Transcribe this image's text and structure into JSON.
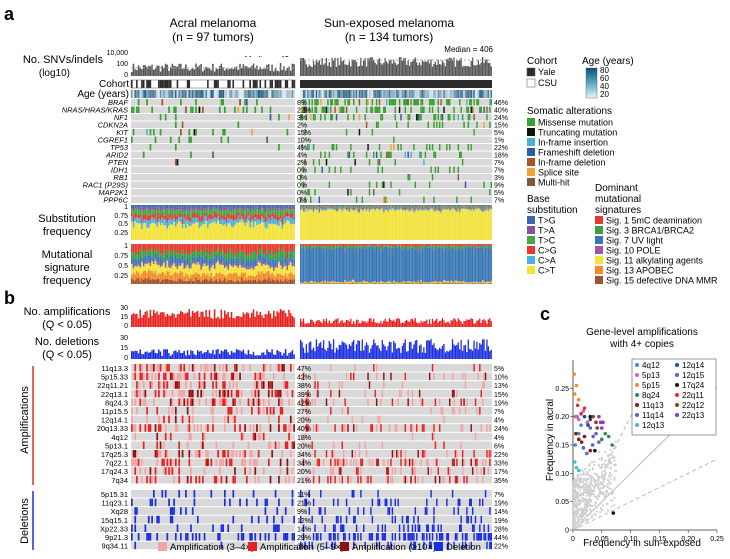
{
  "panel_labels": {
    "a": "a",
    "b": "b",
    "c": "c"
  },
  "header": {
    "acral_title": "Acral melanoma",
    "acral_n": "(n = 97 tumors)",
    "sun_title": "Sun-exposed melanoma",
    "sun_n": "(n = 134 tumors)"
  },
  "rows": {
    "snvs": "No. SNVs/indels",
    "snvs_unit": "(log10)",
    "cohort": "Cohort",
    "age": "Age (years)",
    "subst_1": "Substitution",
    "subst_2": "frequency",
    "mut_1": "Mutational",
    "mut_2": "signature",
    "mut_3": "frequency",
    "amp_1": "No. amplifications",
    "amp_2": "(Q < 0.05)",
    "del_1": "No. deletions",
    "del_2": "(Q < 0.05)",
    "amplifications_group": "Amplifications",
    "deletions_group": "Deletions"
  },
  "snv_axis": [
    "10,000",
    "100",
    "0"
  ],
  "median_acral": "Median = 42",
  "median_sun": "Median = 406",
  "freq_axis": [
    "1",
    "0.75",
    "0.5",
    "0.25"
  ],
  "count_axis": [
    "30",
    "15",
    "0"
  ],
  "genes": [
    {
      "name": "BRAF",
      "acral": "8%",
      "sun": "46%"
    },
    {
      "name": "NRAS/HRAS/KRAS",
      "acral": "22%",
      "sun": "40%"
    },
    {
      "name": "NF1",
      "acral": "3%",
      "sun": "24%"
    },
    {
      "name": "CDKN2A",
      "acral": "2%",
      "sun": "15%"
    },
    {
      "name": "KIT",
      "acral": "15%",
      "sun": "5%"
    },
    {
      "name": "CGREF1",
      "acral": "10%",
      "sun": "1%"
    },
    {
      "name": "TP53",
      "acral": "4%",
      "sun": "22%"
    },
    {
      "name": "ARID2",
      "acral": "4%",
      "sun": "18%"
    },
    {
      "name": "PTEN",
      "acral": "2%",
      "sun": "7%"
    },
    {
      "name": "IDH1",
      "acral": "0%",
      "sun": "7%"
    },
    {
      "name": "RB1",
      "acral": "0%",
      "sun": "3%"
    },
    {
      "name": "RAC1 (P29S)",
      "acral": "0%",
      "sun": "9%"
    },
    {
      "name": "MAP2K1",
      "acral": "0%",
      "sun": "5%"
    },
    {
      "name": "PPP6C",
      "acral": "0%",
      "sun": "7%"
    }
  ],
  "amps": [
    {
      "name": "11q13.3",
      "acral": "47%",
      "sun": "5%"
    },
    {
      "name": "5p15.33",
      "acral": "42%",
      "sun": "10%"
    },
    {
      "name": "22q11.21",
      "acral": "38%",
      "sun": "13%"
    },
    {
      "name": "22q13.1",
      "acral": "39%",
      "sun": "15%"
    },
    {
      "name": "8q24.3",
      "acral": "42%",
      "sun": "19%"
    },
    {
      "name": "11p15.5",
      "acral": "27%",
      "sun": "7%"
    },
    {
      "name": "12q14.1",
      "acral": "20%",
      "sun": "4%"
    },
    {
      "name": "20q13.33",
      "acral": "40%",
      "sun": "24%"
    },
    {
      "name": "4q12",
      "acral": "18%",
      "sun": "4%"
    },
    {
      "name": "5p13.1",
      "acral": "20%",
      "sun": "6%"
    },
    {
      "name": "17q25.3",
      "acral": "34%",
      "sun": "22%"
    },
    {
      "name": "7q22.1",
      "acral": "34%",
      "sun": "33%"
    },
    {
      "name": "17q24.3",
      "acral": "20%",
      "sun": "17%"
    },
    {
      "name": "7q34",
      "acral": "21%",
      "sun": "35%"
    }
  ],
  "dels": [
    {
      "name": "5p15.31",
      "acral": "11%",
      "sun": "7%"
    },
    {
      "name": "11q23.1",
      "acral": "21%",
      "sun": "19%"
    },
    {
      "name": "Xq28",
      "acral": "9%",
      "sun": "14%"
    },
    {
      "name": "15q15.1",
      "acral": "12%",
      "sun": "19%"
    },
    {
      "name": "Xp22.33",
      "acral": "14%",
      "sun": "28%"
    },
    {
      "name": "9p21.3",
      "acral": "29%",
      "sun": "44%"
    },
    {
      "name": "9q34.11",
      "acral": "3%",
      "sun": "22%"
    }
  ],
  "legend": {
    "cohort_title": "Cohort",
    "cohort_items": [
      {
        "label": "Yale",
        "color": "#2b2b2b"
      },
      {
        "label": "CSU",
        "color": "#ffffff"
      }
    ],
    "age_title": "Age (years)",
    "age_ticks": [
      "80",
      "60",
      "40",
      "20"
    ],
    "alterations_title": "Somatic alterations",
    "alterations": [
      {
        "label": "Missense mutation",
        "color": "#3aa02f"
      },
      {
        "label": "Truncating mutation",
        "color": "#111111"
      },
      {
        "label": "In-frame insertion",
        "color": "#4cb1d8"
      },
      {
        "label": "Frameshift deletion",
        "color": "#2a5ba6"
      },
      {
        "label": "In-frame deletion",
        "color": "#a8552a"
      },
      {
        "label": "Splice site",
        "color": "#f2a33a"
      },
      {
        "label": "Multi-hit",
        "color": "#7a5a3a"
      }
    ],
    "base_title_1": "Base",
    "base_title_2": "substitution",
    "bases": [
      {
        "label": "T>G",
        "color": "#3b66b0"
      },
      {
        "label": "T>A",
        "color": "#8a4fa0"
      },
      {
        "label": "T>C",
        "color": "#45a845"
      },
      {
        "label": "C>G",
        "color": "#e23a2e"
      },
      {
        "label": "C>A",
        "color": "#4ab0e0"
      },
      {
        "label": "C>T",
        "color": "#f2e23a"
      }
    ],
    "sig_title_1": "Dominant",
    "sig_title_2": "mutational",
    "sig_title_3": "signatures",
    "sigs": [
      {
        "label": "Sig. 1 5mC deamination",
        "color": "#e33b2e"
      },
      {
        "label": "Sig. 3 BRCA1/BRCA2",
        "color": "#3aa041"
      },
      {
        "label": "Sig. 7 UV light",
        "color": "#3976b5"
      },
      {
        "label": "Sig. 10 POLE",
        "color": "#9b59a6"
      },
      {
        "label": "Sig. 11 alkylating agents",
        "color": "#f2e23a"
      },
      {
        "label": "Sig. 13 APOBEC",
        "color": "#f28c28"
      },
      {
        "label": "Sig. 15 defective DNA MMR",
        "color": "#a0522d"
      }
    ],
    "cnv_items": [
      {
        "label": "Amplification (3–4×)",
        "color": "#f6a3a3"
      },
      {
        "label": "Amplification (5–9×)",
        "color": "#e8201f"
      },
      {
        "label": "Amplification (≥10×)",
        "color": "#8e1010"
      },
      {
        "label": "Deletion",
        "color": "#1a2ee0"
      }
    ]
  },
  "panel_c": {
    "title_1": "Gene-level amplifications",
    "title_2": "with 4+ copies",
    "xlabel": "Frequency in sun-exposed",
    "ylabel": "Frequency in acral",
    "ticks": [
      "0",
      "0.05",
      "0.10",
      "0.15",
      "0.20",
      "0.25"
    ]
  },
  "chart_data": {
    "type": "scatter",
    "xlabel": "Frequency in sun-exposed",
    "ylabel": "Frequency in acral",
    "xlim": [
      0,
      0.25
    ],
    "ylim": [
      0,
      0.3
    ],
    "series": [
      {
        "name": "4q12",
        "color": "#3a8fd0",
        "points": [
          [
            0.007,
            0.2
          ],
          [
            0.01,
            0.17
          ],
          [
            0.014,
            0.185
          ],
          [
            0.004,
            0.15
          ]
        ]
      },
      {
        "name": "5p13",
        "color": "#e05ab0",
        "points": [
          [
            0.004,
            0.2
          ],
          [
            0.01,
            0.195
          ],
          [
            0.018,
            0.21
          ],
          [
            0.025,
            0.19
          ]
        ]
      },
      {
        "name": "5p15",
        "color": "#f28c28",
        "points": [
          [
            0.002,
            0.275
          ],
          [
            0.006,
            0.255
          ],
          [
            0.01,
            0.23
          ],
          [
            0.003,
            0.24
          ]
        ]
      },
      {
        "name": "8q24",
        "color": "#2e8b57",
        "points": [
          [
            0.05,
            0.16
          ],
          [
            0.056,
            0.17
          ],
          [
            0.062,
            0.165
          ],
          [
            0.068,
            0.15
          ]
        ]
      },
      {
        "name": "11q13",
        "color": "#8b1a1a",
        "points": [
          [
            0.005,
            0.17
          ],
          [
            0.01,
            0.16
          ],
          [
            0.015,
            0.155
          ],
          [
            0.02,
            0.165
          ],
          [
            0.03,
            0.14
          ]
        ]
      },
      {
        "name": "11q14",
        "color": "#6a5acd",
        "points": [
          [
            0.03,
            0.18
          ],
          [
            0.035,
            0.165
          ],
          [
            0.04,
            0.17
          ],
          [
            0.045,
            0.155
          ]
        ]
      },
      {
        "name": "12q13",
        "color": "#40c0d0",
        "points": [
          [
            0.003,
            0.12
          ],
          [
            0.006,
            0.11
          ],
          [
            0.01,
            0.105
          ]
        ]
      },
      {
        "name": "12q14",
        "color": "#1f4f8f",
        "points": [
          [
            0.02,
            0.2
          ],
          [
            0.026,
            0.185
          ],
          [
            0.03,
            0.195
          ]
        ]
      },
      {
        "name": "12q15",
        "color": "#4169e1",
        "points": [
          [
            0.018,
            0.145
          ],
          [
            0.024,
            0.135
          ],
          [
            0.034,
            0.15
          ]
        ]
      },
      {
        "name": "17q24",
        "color": "#111111",
        "points": [
          [
            0.03,
            0.2
          ],
          [
            0.07,
            0.03
          ],
          [
            0.038,
            0.14
          ]
        ]
      },
      {
        "name": "22q11",
        "color": "#e3302e",
        "points": [
          [
            0.008,
            0.22
          ],
          [
            0.014,
            0.205
          ],
          [
            0.02,
            0.215
          ]
        ]
      },
      {
        "name": "22q12",
        "color": "#8b4513",
        "points": [
          [
            0.035,
            0.2
          ],
          [
            0.04,
            0.19
          ],
          [
            0.042,
            0.18
          ]
        ]
      },
      {
        "name": "22q13",
        "color": "#9932cc",
        "points": [
          [
            0.045,
            0.2
          ],
          [
            0.048,
            0.19
          ],
          [
            0.05,
            0.18
          ],
          [
            0.052,
            0.19
          ]
        ]
      }
    ],
    "reference_lines": [
      "y = x",
      "y = 2x",
      "y = x / 2"
    ]
  }
}
